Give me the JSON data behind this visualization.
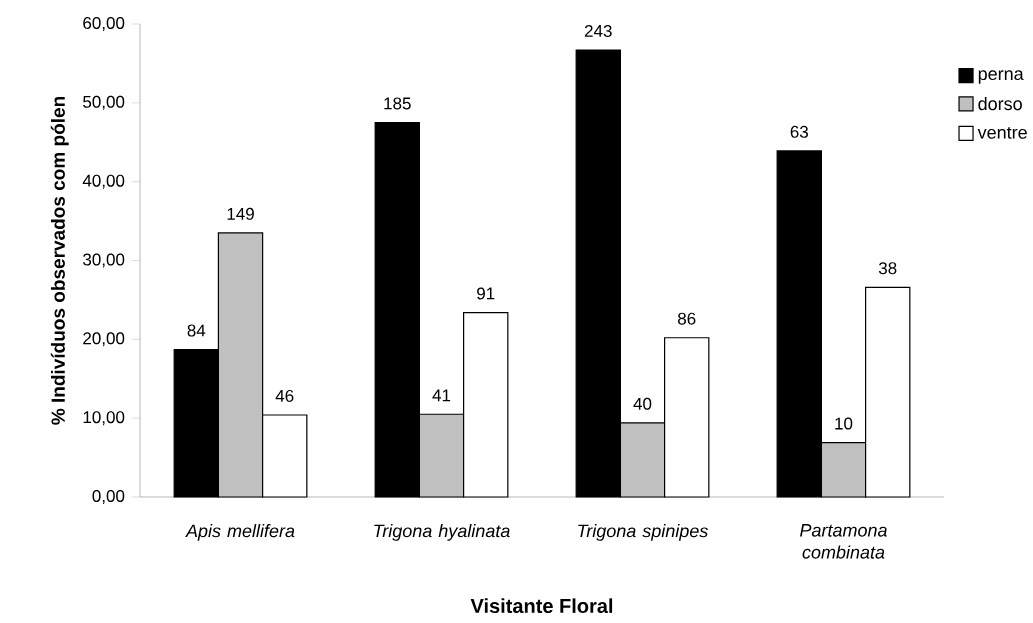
{
  "chart_data": {
    "type": "bar",
    "xlabel": "Visitante Floral",
    "ylabel": "% Indivíduos observados com pólen",
    "categories": [
      "Apis mellifera",
      "Trigona hyalinata",
      "Trigona spinipes",
      "Partamona combinata"
    ],
    "series": [
      {
        "name": "perna",
        "color": "#000000",
        "values": [
          18.7,
          47.5,
          56.7,
          43.9
        ]
      },
      {
        "name": "dorso",
        "color": "#c0c0c0",
        "values": [
          33.5,
          10.5,
          9.4,
          6.9
        ]
      },
      {
        "name": "ventre",
        "color": "#ffffff",
        "values": [
          10.4,
          23.4,
          20.2,
          26.6
        ]
      }
    ],
    "annotations": [
      "84",
      "185",
      "243",
      "63",
      "149",
      "41",
      "40",
      "10",
      "46",
      "91",
      "86",
      "38"
    ],
    "ylim": [
      0,
      60
    ],
    "yticks": [
      {
        "value": 0,
        "label": "0,00"
      },
      {
        "value": 10,
        "label": "10,00"
      },
      {
        "value": 20,
        "label": "20,00"
      },
      {
        "value": 30,
        "label": "30,00"
      },
      {
        "value": 40,
        "label": "40,00"
      },
      {
        "value": 50,
        "label": "50,00"
      },
      {
        "value": 60,
        "label": "60,00"
      }
    ],
    "grid": false,
    "legend": "top right"
  }
}
